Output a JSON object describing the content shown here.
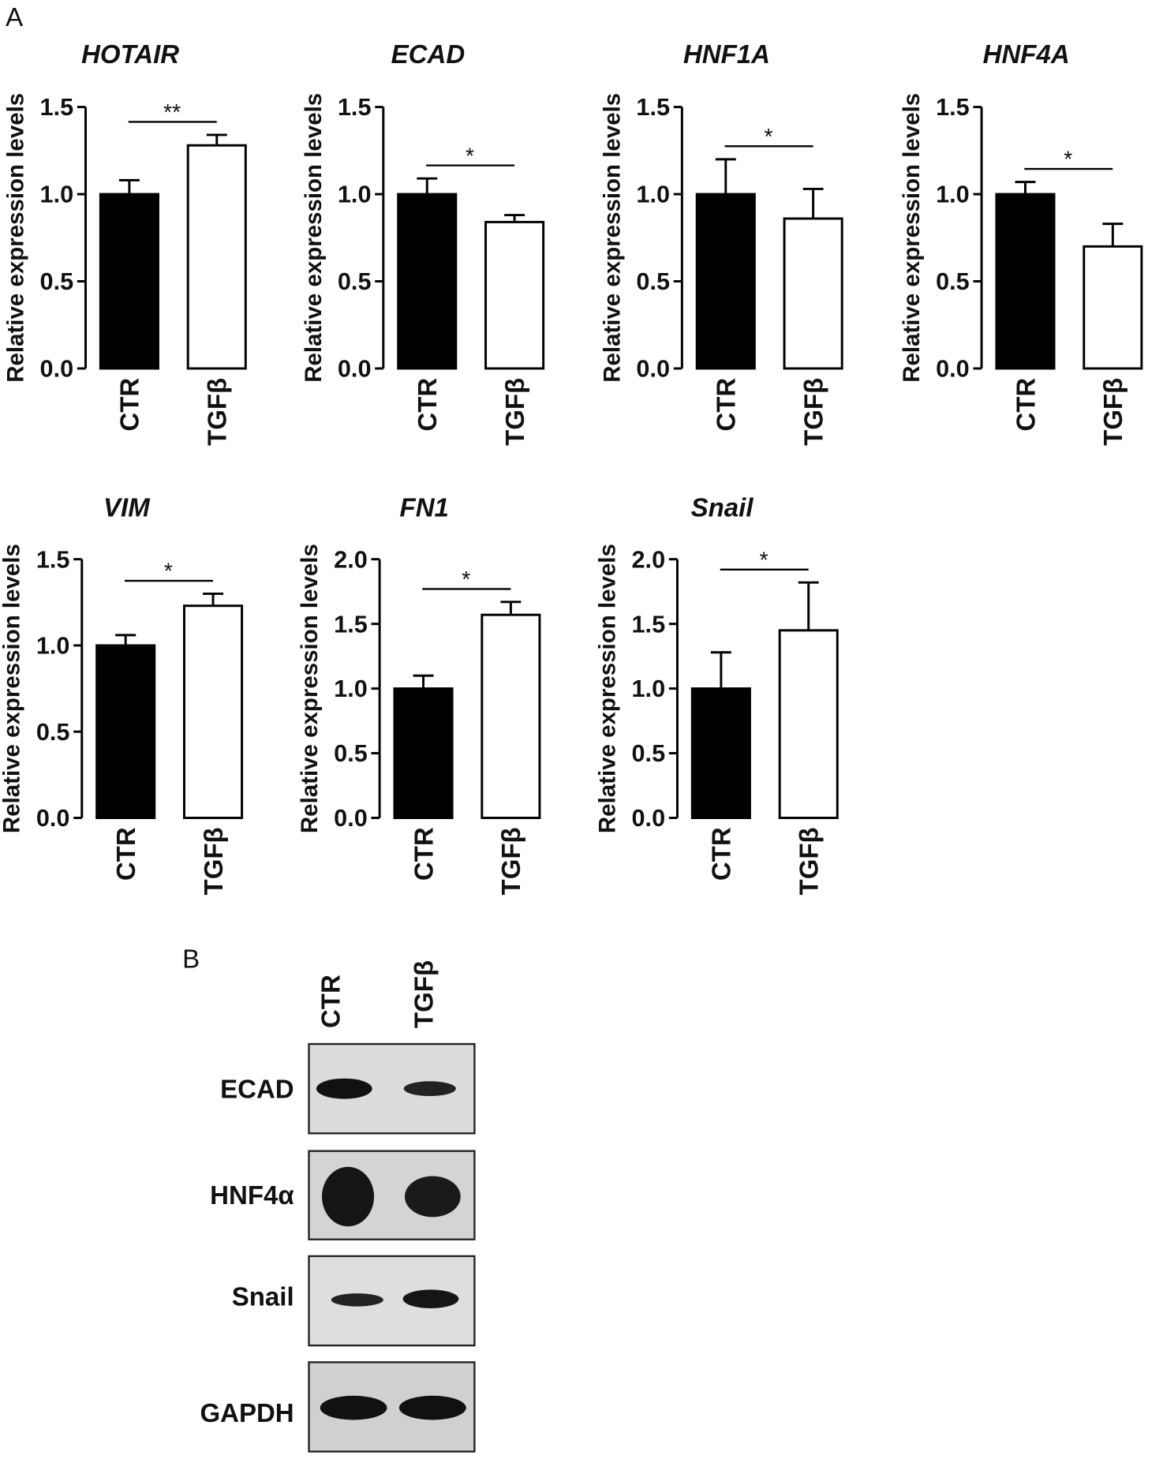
{
  "panel_labels": {
    "a": "A",
    "b": "B"
  },
  "chart_data": [
    {
      "type": "bar",
      "title": "HOTAIR",
      "y_label": "Relative expression levels",
      "categories": [
        "CTR",
        "TGFβ"
      ],
      "colors": [
        "#000000",
        "#ffffff"
      ],
      "values": [
        1.0,
        1.28
      ],
      "errors": [
        0.08,
        0.06
      ],
      "significance": "**",
      "ylim": [
        0,
        1.5
      ],
      "yticks": [
        {
          "value": 0,
          "label": "0.0"
        },
        0.5,
        {
          "value": 1,
          "label": "1.0"
        },
        1.5
      ]
    },
    {
      "type": "bar",
      "title": "ECAD",
      "y_label": "Relative expression levels",
      "categories": [
        "CTR",
        "TGFβ"
      ],
      "colors": [
        "#000000",
        "#ffffff"
      ],
      "values": [
        1.0,
        0.84
      ],
      "errors": [
        0.09,
        0.04
      ],
      "significance": "*",
      "ylim": [
        0,
        1.5
      ],
      "yticks": [
        {
          "value": 0,
          "label": "0.0"
        },
        0.5,
        {
          "value": 1,
          "label": "1.0"
        },
        1.5
      ]
    },
    {
      "type": "bar",
      "title": "HNF1A",
      "y_label": "Relative expression levels",
      "categories": [
        "CTR",
        "TGFβ"
      ],
      "colors": [
        "#000000",
        "#ffffff"
      ],
      "values": [
        1.0,
        0.86
      ],
      "errors": [
        0.2,
        0.17
      ],
      "significance": "*",
      "ylim": [
        0,
        1.5
      ],
      "yticks": [
        {
          "value": 0,
          "label": "0.0"
        },
        0.5,
        {
          "value": 1,
          "label": "1.0"
        },
        1.5
      ]
    },
    {
      "type": "bar",
      "title": "HNF4A",
      "y_label": "Relative expression levels",
      "categories": [
        "CTR",
        "TGFβ"
      ],
      "colors": [
        "#000000",
        "#ffffff"
      ],
      "values": [
        1.0,
        0.7
      ],
      "errors": [
        0.07,
        0.13
      ],
      "significance": "*",
      "ylim": [
        0,
        1.5
      ],
      "yticks": [
        {
          "value": 0,
          "label": "0.0"
        },
        0.5,
        {
          "value": 1,
          "label": "1.0"
        },
        1.5
      ]
    },
    {
      "type": "bar",
      "title": "VIM",
      "y_label": "Relative expression levels",
      "categories": [
        "CTR",
        "TGFβ"
      ],
      "colors": [
        "#000000",
        "#ffffff"
      ],
      "values": [
        1.0,
        1.23
      ],
      "errors": [
        0.06,
        0.07
      ],
      "significance": "*",
      "ylim": [
        0,
        1.5
      ],
      "yticks": [
        {
          "value": 0,
          "label": "0.0"
        },
        0.5,
        {
          "value": 1,
          "label": "1.0"
        },
        1.5
      ]
    },
    {
      "type": "bar",
      "title": "FN1",
      "y_label": "Relative expression levels",
      "categories": [
        "CTR",
        "TGFβ"
      ],
      "colors": [
        "#000000",
        "#ffffff"
      ],
      "values": [
        1.0,
        1.57
      ],
      "errors": [
        0.1,
        0.1
      ],
      "significance": "*",
      "ylim": [
        0,
        2
      ],
      "yticks": [
        {
          "value": 0,
          "label": "0.0"
        },
        0.5,
        {
          "value": 1,
          "label": "1.0"
        },
        1.5,
        {
          "value": 2,
          "label": "2.0"
        }
      ]
    },
    {
      "type": "bar",
      "title": "Snail",
      "y_label": "Relative expression levels",
      "categories": [
        "CTR",
        "TGFβ"
      ],
      "colors": [
        "#000000",
        "#ffffff"
      ],
      "values": [
        1.0,
        1.45
      ],
      "errors": [
        0.28,
        0.37
      ],
      "significance": "*",
      "ylim": [
        0,
        2
      ],
      "yticks": [
        {
          "value": 0,
          "label": "0.0"
        },
        0.5,
        {
          "value": 1,
          "label": "1.0"
        },
        1.5,
        {
          "value": 2,
          "label": "2.0"
        }
      ]
    }
  ],
  "blot": {
    "lanes": [
      "CTR",
      "TGFβ"
    ],
    "rows": [
      "ECAD",
      "HNF4α",
      "Snail",
      "GAPDH"
    ]
  }
}
